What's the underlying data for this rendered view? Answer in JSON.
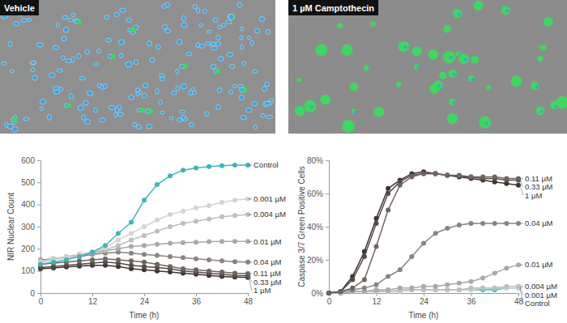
{
  "images": [
    {
      "label": "Vehicle"
    },
    {
      "label": "1 µM Camptothecin"
    }
  ],
  "chart_data": [
    {
      "type": "line",
      "y_label": "NIR Nuclear Count",
      "x_label": "Time (h)",
      "x": [
        0,
        3,
        6,
        9,
        12,
        15,
        18,
        21,
        24,
        27,
        30,
        33,
        36,
        39,
        42,
        45,
        48
      ],
      "xlim": [
        0,
        48
      ],
      "xticks": [
        0,
        12,
        24,
        36,
        48
      ],
      "ylim": [
        0,
        600
      ],
      "yticks": [
        0,
        100,
        200,
        300,
        400,
        500,
        600
      ],
      "marker": "circle",
      "series": [
        {
          "name": "Control",
          "color": "#3fb5b8",
          "values": [
            130,
            140,
            150,
            165,
            185,
            215,
            270,
            320,
            420,
            490,
            530,
            555,
            565,
            572,
            575,
            578,
            578
          ]
        },
        {
          "name": "0.001 µM",
          "color": "#d3d3d3",
          "values": [
            140,
            150,
            160,
            170,
            185,
            205,
            240,
            270,
            300,
            330,
            355,
            370,
            385,
            395,
            410,
            420,
            425
          ]
        },
        {
          "name": "0.004 µM",
          "color": "#bebebe",
          "values": [
            145,
            155,
            165,
            175,
            185,
            195,
            215,
            240,
            260,
            280,
            300,
            315,
            325,
            335,
            345,
            350,
            355
          ]
        },
        {
          "name": "0.01 µM",
          "color": "#a9a9a9",
          "values": [
            140,
            150,
            160,
            170,
            180,
            190,
            200,
            210,
            215,
            220,
            225,
            228,
            230,
            232,
            233,
            233,
            233
          ]
        },
        {
          "name": "0.04 µM",
          "color": "#8a8381",
          "values": [
            150,
            155,
            160,
            165,
            175,
            180,
            185,
            180,
            175,
            170,
            165,
            160,
            155,
            150,
            145,
            142,
            140
          ]
        },
        {
          "name": "0.11 µM",
          "color": "#6e6563",
          "values": [
            130,
            135,
            140,
            145,
            150,
            155,
            150,
            145,
            140,
            130,
            120,
            110,
            105,
            100,
            95,
            90,
            88
          ]
        },
        {
          "name": "0.33 µM",
          "color": "#554c49",
          "values": [
            115,
            120,
            125,
            130,
            135,
            140,
            135,
            125,
            120,
            115,
            110,
            100,
            95,
            90,
            85,
            80,
            78
          ]
        },
        {
          "name": "1 µM",
          "color": "#3d3432",
          "values": [
            110,
            113,
            118,
            122,
            125,
            125,
            120,
            110,
            105,
            100,
            95,
            90,
            85,
            80,
            75,
            72,
            70
          ]
        }
      ]
    },
    {
      "type": "line",
      "y_label": "Caspase 3/7 Green Positive Cells",
      "x_label": "Time (h)",
      "x": [
        0,
        3,
        6,
        9,
        12,
        15,
        18,
        21,
        24,
        27,
        30,
        33,
        36,
        39,
        42,
        45,
        48
      ],
      "xlim": [
        0,
        48
      ],
      "xticks": [
        0,
        12,
        24,
        36,
        48
      ],
      "ylim": [
        0,
        80
      ],
      "yticks": [
        {
          "value": 0,
          "label": "0%"
        },
        {
          "value": 20,
          "label": "20%"
        },
        {
          "value": 40,
          "label": "40%"
        },
        {
          "value": 60,
          "label": "60%"
        },
        {
          "value": 80,
          "label": "80%"
        }
      ],
      "marker": "circle",
      "series": [
        {
          "name": "0.11 µM",
          "color": "#6e6563",
          "values": [
            0,
            1,
            3,
            8,
            28,
            50,
            65,
            70,
            72,
            72,
            71,
            71,
            70,
            70,
            70,
            69,
            69
          ]
        },
        {
          "name": "0.33 µM",
          "color": "#554c49",
          "values": [
            0,
            1,
            8,
            22,
            42,
            60,
            67,
            71,
            72,
            72,
            71,
            70,
            70,
            69,
            69,
            68,
            68
          ]
        },
        {
          "name": "1 µM",
          "color": "#3d3432",
          "values": [
            0,
            1,
            10,
            25,
            45,
            63,
            68,
            72,
            73,
            72,
            71,
            70,
            69,
            68,
            67,
            66,
            65
          ]
        },
        {
          "name": "0.04 µM",
          "color": "#8a8381",
          "values": [
            0,
            1,
            2,
            3,
            5,
            10,
            14,
            22,
            30,
            36,
            39,
            41,
            42,
            42,
            42,
            42,
            42
          ]
        },
        {
          "name": "0.01 µM",
          "color": "#a9a9a9",
          "values": [
            0,
            0,
            1,
            1,
            2,
            2,
            3,
            3,
            4,
            4,
            5,
            6,
            7,
            9,
            12,
            15,
            17
          ]
        },
        {
          "name": "0.004 µM",
          "color": "#bebebe",
          "values": [
            0,
            0,
            1,
            1,
            1,
            1,
            2,
            2,
            2,
            2,
            2,
            2,
            3,
            3,
            3,
            4,
            4
          ]
        },
        {
          "name": "0.001 µM",
          "color": "#d3d3d3",
          "values": [
            0,
            0,
            1,
            1,
            1,
            1,
            1,
            2,
            2,
            2,
            2,
            2,
            2,
            3,
            3,
            3,
            3
          ]
        },
        {
          "name": "Control",
          "color": "#3fb5b8",
          "values": [
            0,
            0,
            1,
            1,
            1,
            1,
            1,
            2,
            2,
            2,
            2,
            2,
            2,
            2,
            2,
            3,
            3
          ]
        }
      ]
    }
  ]
}
